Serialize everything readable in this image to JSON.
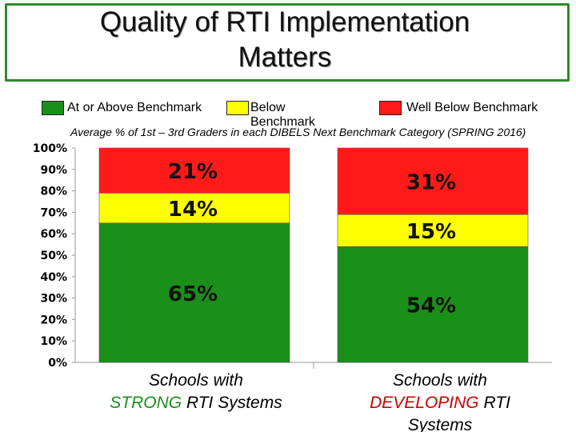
{
  "slide": {
    "title_line1": "Quality of RTI Implementation",
    "title_line2": "Matters",
    "title_border_color": "#2e8a2e"
  },
  "legend": {
    "placement": "top",
    "items": [
      {
        "label": "At or Above Benchmark",
        "color": "#1a8f1a"
      },
      {
        "label": "Below Benchmark",
        "color": "#ffff00"
      },
      {
        "label": "Well Below Benchmark",
        "color": "#ff1a1a"
      }
    ]
  },
  "chart_data": {
    "type": "bar",
    "stacked": true,
    "title": "Average % of 1st – 3rd Graders in each DIBELS Next Benchmark Category (SPRING 2016)",
    "categories": [
      {
        "pre": "Schools with",
        "emphasis": "STRONG",
        "post": "RTI Systems",
        "emphasis_color": "#1a8f1a"
      },
      {
        "pre": "Schools with",
        "emphasis": "DEVELOPING",
        "post": "RTI Systems",
        "emphasis_color": "#cc0000"
      }
    ],
    "series": [
      {
        "name": "At or Above Benchmark",
        "color": "#1a8f1a",
        "values": [
          65,
          54
        ],
        "labels": [
          "65%",
          "54%"
        ]
      },
      {
        "name": "Below Benchmark",
        "color": "#ffff00",
        "values": [
          14,
          15
        ],
        "labels": [
          "14%",
          "15%"
        ]
      },
      {
        "name": "Well Below Benchmark",
        "color": "#ff1a1a",
        "values": [
          21,
          31
        ],
        "labels": [
          "21%",
          "31%"
        ]
      }
    ],
    "ylim": [
      0,
      100
    ],
    "yticks": [
      "0%",
      "10%",
      "20%",
      "30%",
      "40%",
      "50%",
      "60%",
      "70%",
      "80%",
      "90%",
      "100%"
    ],
    "grid": false
  }
}
